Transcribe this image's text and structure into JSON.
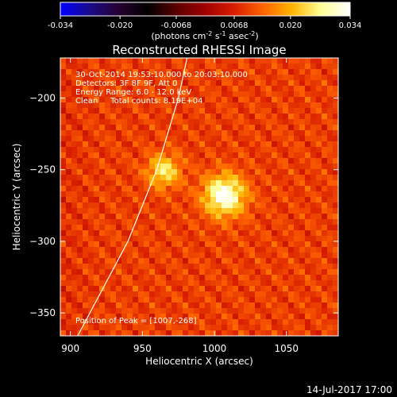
{
  "chart_data": {
    "type": "heatmap",
    "title": "Reconstructed RHESSI Image",
    "xlabel": "Heliocentric X (arcsec)",
    "ylabel": "Heliocentric Y (arcsec)",
    "xlim": [
      893,
      1086
    ],
    "ylim": [
      -366,
      -172
    ],
    "x_ticks": [
      900,
      950,
      1000,
      1050
    ],
    "y_ticks": [
      -200,
      -250,
      -300,
      -350
    ],
    "colorbar": {
      "min": -0.034,
      "max": 0.034,
      "ticks": [
        "-0.034",
        "-0.020",
        "-0.0068",
        "0.0068",
        "0.020",
        "0.034"
      ],
      "tick_values": [
        -0.034,
        -0.02,
        -0.0068,
        0.0068,
        0.02,
        0.034
      ],
      "unit_label": "(photons cm",
      "unit_sup1": "-2",
      "unit_mid": " s",
      "unit_sup2": "-1",
      "unit_mid2": " asec",
      "unit_sup3": "-2",
      "unit_end": ")",
      "colors": [
        "#0000ff",
        "#1a0a8c",
        "#280032",
        "#000000",
        "#5a0000",
        "#a00000",
        "#d81e00",
        "#ff6400",
        "#ffb400",
        "#ffff96",
        "#ffffff"
      ]
    },
    "info_lines": [
      "30-Oct-2014 19:53:10.000 to 20:03:10.000",
      "Detectors: 3F 8F 9F, Att 0",
      "Energy Range: 6.0 - 12.0 keV",
      "Clean     Total counts: 8.19E+04"
    ],
    "peak_label": "Position of Peak = [1007,-268]",
    "sources": [
      {
        "x": 1007,
        "y": -268,
        "peak": 0.034,
        "sigma": 10
      },
      {
        "x": 965,
        "y": -251,
        "peak": 0.026,
        "sigma": 8
      }
    ],
    "background_level": 0.01,
    "limb": [
      [
        905,
        -366
      ],
      [
        940,
        -300
      ],
      [
        960,
        -250
      ],
      [
        975,
        -200
      ],
      [
        981,
        -172
      ]
    ]
  },
  "footer": {
    "date": "14-Jul-2017 17:00"
  }
}
